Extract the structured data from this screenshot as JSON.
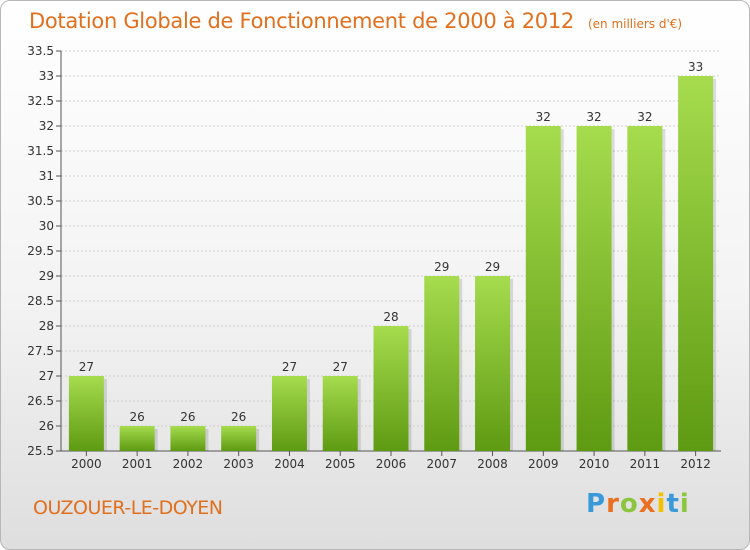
{
  "title": "Dotation Globale de Fonctionnement de 2000 à 2012",
  "subtitle": "(en milliers d'€)",
  "commune": "OUZOUER-LE-DOYEN",
  "logo": {
    "letters": [
      "P",
      "r",
      "o",
      "x",
      "i",
      "t",
      "i"
    ],
    "colors": [
      "#3a9ad9",
      "#e8701e",
      "#8cc63f",
      "#e8701e",
      "#f2c200",
      "#3a9ad9",
      "#8cc63f"
    ]
  },
  "colors": {
    "title": "#e0701e",
    "bar_light": "#a6dc4e",
    "bar_dark": "#5e9a12",
    "grid": "#cfcfcf"
  },
  "chart_data": {
    "type": "bar",
    "title": "Dotation Globale de Fonctionnement de 2000 à 2012",
    "subtitle": "(en milliers d'€)",
    "categories": [
      "2000",
      "2001",
      "2002",
      "2003",
      "2004",
      "2005",
      "2006",
      "2007",
      "2008",
      "2009",
      "2010",
      "2011",
      "2012"
    ],
    "values": [
      27,
      26,
      26,
      26,
      27,
      27,
      28,
      29,
      29,
      32,
      32,
      32,
      33
    ],
    "ylim": [
      25.5,
      33.5
    ],
    "yticks": [
      "25.5",
      "26",
      "26.5",
      "27",
      "27.5",
      "28",
      "28.5",
      "29",
      "29.5",
      "30",
      "30.5",
      "31",
      "31.5",
      "32",
      "32.5",
      "33",
      "33.5"
    ],
    "grid": true,
    "legend": "none"
  }
}
